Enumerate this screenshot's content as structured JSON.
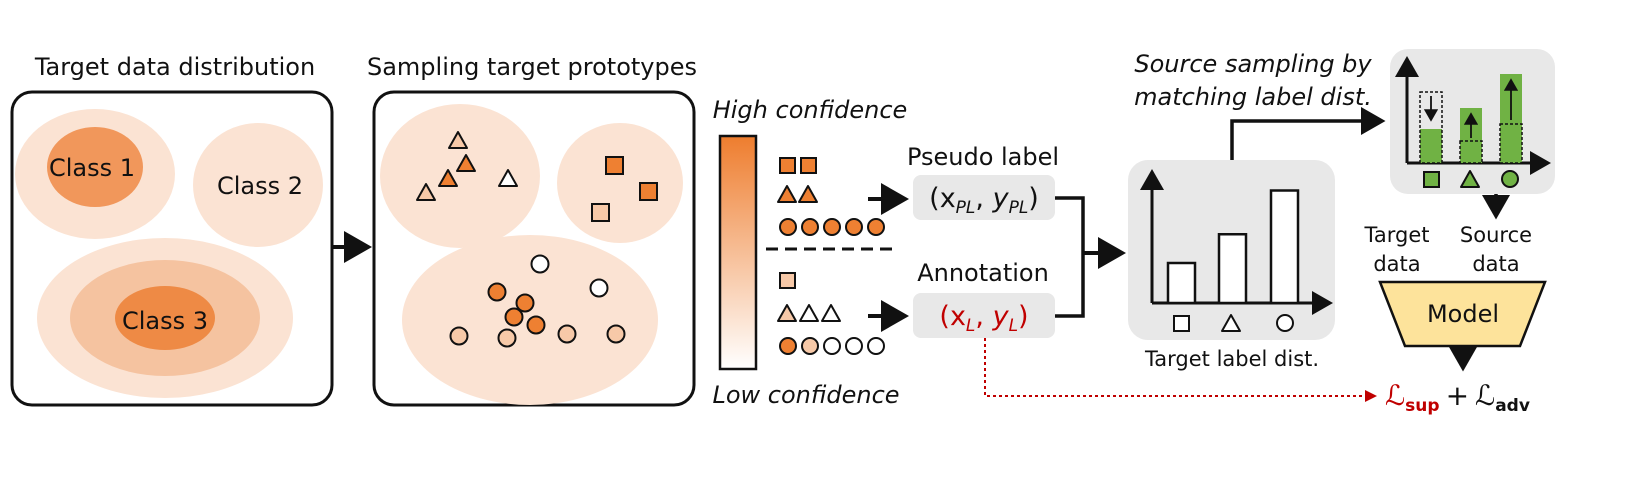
{
  "panel1": {
    "title": "Target data distribution",
    "class1": "Class 1",
    "class2": "Class 2",
    "class3": "Class 3"
  },
  "panel2": {
    "title": "Sampling target prototypes"
  },
  "confidence": {
    "high": "High confidence",
    "low": "Low confidence"
  },
  "labels": {
    "pseudo_title": "Pseudo label",
    "pseudo_x": "x",
    "pseudo_x_sub": "PL",
    "pseudo_y": "y",
    "pseudo_y_sub": "PL",
    "annotation_title": "Annotation",
    "ann_x": "x",
    "ann_x_sub": "L",
    "ann_y": "y",
    "ann_y_sub": "L"
  },
  "target_dist": {
    "caption": "Target label dist.",
    "bars": [
      0.32,
      0.55,
      0.9
    ]
  },
  "source_sampling": {
    "title_line1": "Source sampling by",
    "title_line2": "matching label dist."
  },
  "model": {
    "target_data_line1": "Target",
    "target_data_line2": "data",
    "source_data_line1": "Source",
    "source_data_line2": "data",
    "label": "Model",
    "loss_sup": "sup",
    "loss_adv": "adv",
    "plus": "+",
    "script_L": "ℒ"
  },
  "colors": {
    "light_blob": "#fbe3d3",
    "mid_blob": "#f5c3a0",
    "dark_blob": "#ee8a45",
    "orange_mark": "#ee8032",
    "peach_mark": "#f7c9a8",
    "gray_panel": "#e8e8e8",
    "green_bar": "#70b244",
    "model_fill": "#fde39b",
    "red": "#c00000"
  }
}
